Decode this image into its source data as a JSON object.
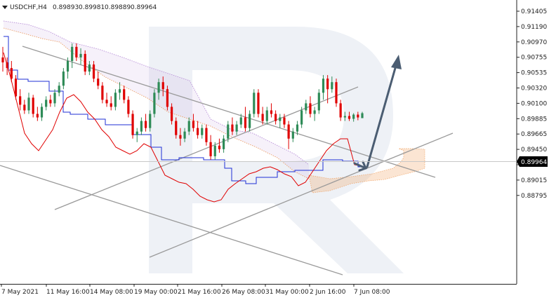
{
  "header": {
    "symbol": "USDCHF,H4",
    "open": "0.89893",
    "high": "0.89981",
    "low": "0.89889",
    "close": "0.89964"
  },
  "current_price_label": "0.89964",
  "y_axis_labels": [
    "0.91405",
    "0.91190",
    "0.90970",
    "0.90755",
    "0.90535",
    "0.90320",
    "0.90100",
    "0.89885",
    "0.89665",
    "0.89450",
    "0.89230",
    "0.89015",
    "0.88795"
  ],
  "x_axis_labels": [
    "7 May 2021",
    "11 May 16:00",
    "14 May 08:00",
    "19 May 00:00",
    "21 May 16:00",
    "26 May 08:00",
    "31 May 00:00",
    "2 Jun 16:00",
    "7 Jun 08:00"
  ],
  "colors": {
    "bull": "#2e8b57",
    "bear": "#e00000",
    "tenkan": "#e00000",
    "kijun": "#1f2fd6",
    "cloud_a": "#b88fd8",
    "cloud_b": "#f0a060",
    "trend": "#9a9a9a",
    "arrow": "#4b5d72"
  },
  "chart_data": {
    "type": "candlestick",
    "symbol": "USDCHF",
    "timeframe": "H4",
    "ylim": [
      0.88795,
      0.91405
    ],
    "last_price": 0.89964,
    "candles_ohlc": [
      [
        0.9075,
        0.909,
        0.9055,
        0.9068
      ],
      [
        0.9068,
        0.9075,
        0.905,
        0.906
      ],
      [
        0.906,
        0.907,
        0.904,
        0.9045
      ],
      [
        0.9045,
        0.905,
        0.9015,
        0.902
      ],
      [
        0.902,
        0.903,
        0.9,
        0.9008
      ],
      [
        0.9008,
        0.9015,
        0.8995,
        0.9
      ],
      [
        0.9,
        0.9025,
        0.8995,
        0.9018
      ],
      [
        0.9018,
        0.9022,
        0.899,
        0.8995
      ],
      [
        0.8995,
        0.9005,
        0.8985,
        0.899
      ],
      [
        0.899,
        0.901,
        0.8985,
        0.9005
      ],
      [
        0.9005,
        0.902,
        0.9,
        0.9015
      ],
      [
        0.9015,
        0.9022,
        0.9005,
        0.901
      ],
      [
        0.901,
        0.903,
        0.9005,
        0.9025
      ],
      [
        0.9025,
        0.904,
        0.902,
        0.9035
      ],
      [
        0.9035,
        0.906,
        0.903,
        0.9055
      ],
      [
        0.9055,
        0.9075,
        0.9045,
        0.907
      ],
      [
        0.907,
        0.9095,
        0.906,
        0.909
      ],
      [
        0.909,
        0.9095,
        0.907,
        0.9075
      ],
      [
        0.9075,
        0.9088,
        0.9065,
        0.908
      ],
      [
        0.908,
        0.9085,
        0.905,
        0.9055
      ],
      [
        0.9055,
        0.907,
        0.905,
        0.9065
      ],
      [
        0.9065,
        0.907,
        0.904,
        0.9045
      ],
      [
        0.9045,
        0.9055,
        0.903,
        0.9035
      ],
      [
        0.9035,
        0.904,
        0.901,
        0.9015
      ],
      [
        0.9015,
        0.9025,
        0.9005,
        0.901
      ],
      [
        0.901,
        0.902,
        0.9,
        0.9005
      ],
      [
        0.9005,
        0.903,
        0.9,
        0.9025
      ],
      [
        0.9025,
        0.904,
        0.9015,
        0.903
      ],
      [
        0.903,
        0.9035,
        0.901,
        0.9015
      ],
      [
        0.9015,
        0.902,
        0.899,
        0.8995
      ],
      [
        0.8995,
        0.9,
        0.896,
        0.8965
      ],
      [
        0.8965,
        0.8975,
        0.8955,
        0.897
      ],
      [
        0.897,
        0.899,
        0.8965,
        0.8985
      ],
      [
        0.8985,
        0.8995,
        0.897,
        0.8975
      ],
      [
        0.8975,
        0.9,
        0.897,
        0.8995
      ],
      [
        0.8995,
        0.903,
        0.899,
        0.9025
      ],
      [
        0.9025,
        0.9045,
        0.9015,
        0.904
      ],
      [
        0.904,
        0.9048,
        0.902,
        0.903
      ],
      [
        0.903,
        0.9035,
        0.9,
        0.9005
      ],
      [
        0.9005,
        0.901,
        0.898,
        0.8985
      ],
      [
        0.8985,
        0.899,
        0.896,
        0.8965
      ],
      [
        0.8965,
        0.8975,
        0.895,
        0.896
      ],
      [
        0.896,
        0.8975,
        0.8955,
        0.897
      ],
      [
        0.897,
        0.899,
        0.8965,
        0.8985
      ],
      [
        0.8985,
        0.8995,
        0.897,
        0.8975
      ],
      [
        0.8975,
        0.8985,
        0.896,
        0.8965
      ],
      [
        0.8965,
        0.898,
        0.896,
        0.8975
      ],
      [
        0.8975,
        0.898,
        0.895,
        0.8955
      ],
      [
        0.8955,
        0.8965,
        0.893,
        0.8935
      ],
      [
        0.8935,
        0.8955,
        0.893,
        0.895
      ],
      [
        0.895,
        0.896,
        0.894,
        0.8945
      ],
      [
        0.8945,
        0.8965,
        0.894,
        0.896
      ],
      [
        0.896,
        0.8985,
        0.8955,
        0.898
      ],
      [
        0.898,
        0.899,
        0.8965,
        0.897
      ],
      [
        0.897,
        0.8985,
        0.8965,
        0.898
      ],
      [
        0.898,
        0.8995,
        0.8975,
        0.899
      ],
      [
        0.899,
        0.9005,
        0.897,
        0.8975
      ],
      [
        0.8975,
        0.9,
        0.897,
        0.8995
      ],
      [
        0.8995,
        0.903,
        0.899,
        0.9025
      ],
      [
        0.9025,
        0.903,
        0.899,
        0.8995
      ],
      [
        0.8995,
        0.9005,
        0.898,
        0.8985
      ],
      [
        0.8985,
        0.9005,
        0.898,
        0.9
      ],
      [
        0.9,
        0.901,
        0.899,
        0.8995
      ],
      [
        0.8995,
        0.9,
        0.898,
        0.8985
      ],
      [
        0.8985,
        0.8995,
        0.8975,
        0.899
      ],
      [
        0.899,
        0.8995,
        0.8975,
        0.898
      ],
      [
        0.898,
        0.8985,
        0.8945,
        0.896
      ],
      [
        0.896,
        0.8975,
        0.8955,
        0.897
      ],
      [
        0.897,
        0.8985,
        0.8965,
        0.898
      ],
      [
        0.898,
        0.9005,
        0.8975,
        0.9
      ],
      [
        0.9,
        0.9015,
        0.8995,
        0.901
      ],
      [
        0.901,
        0.902,
        0.899,
        0.8995
      ],
      [
        0.8995,
        0.9005,
        0.8985,
        0.9
      ],
      [
        0.9,
        0.903,
        0.8995,
        0.9025
      ],
      [
        0.9025,
        0.905,
        0.9015,
        0.9045
      ],
      [
        0.9045,
        0.905,
        0.901,
        0.903
      ],
      [
        0.903,
        0.9048,
        0.9025,
        0.904
      ],
      [
        0.904,
        0.9045,
        0.9005,
        0.901
      ],
      [
        0.901,
        0.9015,
        0.8985,
        0.899
      ],
      [
        0.899,
        0.8998,
        0.8985,
        0.8992
      ],
      [
        0.8992,
        0.8998,
        0.8985,
        0.8988
      ],
      [
        0.8988,
        0.8996,
        0.8984,
        0.8994
      ],
      [
        0.8994,
        0.8998,
        0.8986,
        0.899
      ],
      [
        0.8989,
        0.8998,
        0.8989,
        0.8996
      ]
    ],
    "forecast": {
      "from": 0.8992,
      "to": 0.9097
    }
  }
}
